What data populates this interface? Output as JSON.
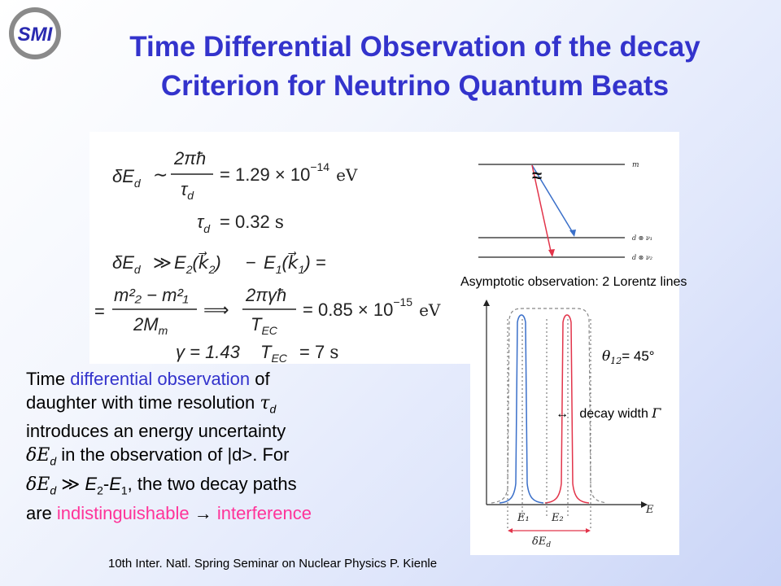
{
  "logo": {
    "text": "SMI",
    "accent": "#2a2ab0"
  },
  "title": {
    "line1": "Time Differential Observation of the decay",
    "line2": "Criterion for Neutrino Quantum Beats"
  },
  "formulas": {
    "f1_lhs": "δE",
    "f1_lhs_sub": "d",
    "f1_sim": "∼",
    "f1_num": "2πħ",
    "f1_den": "τ",
    "f1_den_sub": "d",
    "f1_eq": "= 1.29 × 10",
    "f1_exp": "−14",
    "f1_unit": "eV",
    "f2_lhs": "τ",
    "f2_lhs_sub": "d",
    "f2_eq": "= 0.32",
    "f2_unit": "s",
    "f3_lhs": "δE",
    "f3_lhs_sub": "d",
    "f3_gg": "≫",
    "f3_a": "E",
    "f3_a_sub": "2",
    "f3_a_arg": "(k⃗",
    "f3_a_arg_sub": "2",
    "f3_a_close": ")",
    "f3_minus": "−",
    "f3_b": "E",
    "f3_b_sub": "1",
    "f3_b_arg": "(k⃗",
    "f3_b_arg_sub": "1",
    "f3_b_close": ") =",
    "f4_eq": "=",
    "f4_num": "m²₂ − m²₁",
    "f4_den": "2M",
    "f4_den_sub": "m",
    "f4_arrow": "⟹",
    "f4_num2": "2πγħ",
    "f4_den2": "T",
    "f4_den2_sub": "EC",
    "f4_eq2": "= 0.85 × 10",
    "f4_exp": "−15",
    "f4_unit": "eV",
    "f5_gamma": "γ = 1.43",
    "f5_T": "T",
    "f5_T_sub": "EC",
    "f5_eq": "= 7",
    "f5_unit": "s"
  },
  "diagram": {
    "level_top": "m",
    "level_mid": "d ⊗ ν₁",
    "level_bot": "d ⊗ ν₂",
    "approx": "≈",
    "colors": {
      "blue": "#3a6fc9",
      "red": "#e2344a"
    }
  },
  "caption": "Asymptotic observation: 2 Lorentz lines",
  "plot": {
    "x_axis_label": "E",
    "e1": "E₁",
    "e2": "E₂",
    "de": "δE",
    "de_sub": "d",
    "theta_sym": "θ",
    "theta_sub": "12",
    "theta_val": "= 45°",
    "decay_arrow": "↔",
    "decay_text": "decay width",
    "decay_sym": "Γ"
  },
  "body": {
    "l1_a": "Time ",
    "l1_b": "differential observation",
    "l1_c": " of",
    "l2_a": "daughter with time resolution ",
    "l2_sym": "τ",
    "l2_sub": "d",
    "l3": "introduces an energy uncertainty",
    "l4_sym": "δE",
    "l4_sub": "d",
    "l4_rest": " in the observation of |d>. For",
    "l5_sym": "δE",
    "l5_sub": "d",
    "l5_gg": " ≫ ",
    "l5_e2": "E",
    "l5_e2_sub": "2",
    "l5_dash": "-",
    "l5_e1": "E",
    "l5_e1_sub": "1",
    "l5_rest": ", the two decay paths",
    "l6_a": "are ",
    "l6_b": "indistinguishable",
    "l6_arrow": " → ",
    "l6_c": "interference"
  },
  "footer": "10th Inter. Natl. Spring Seminar on Nuclear Physics   P. Kienle"
}
